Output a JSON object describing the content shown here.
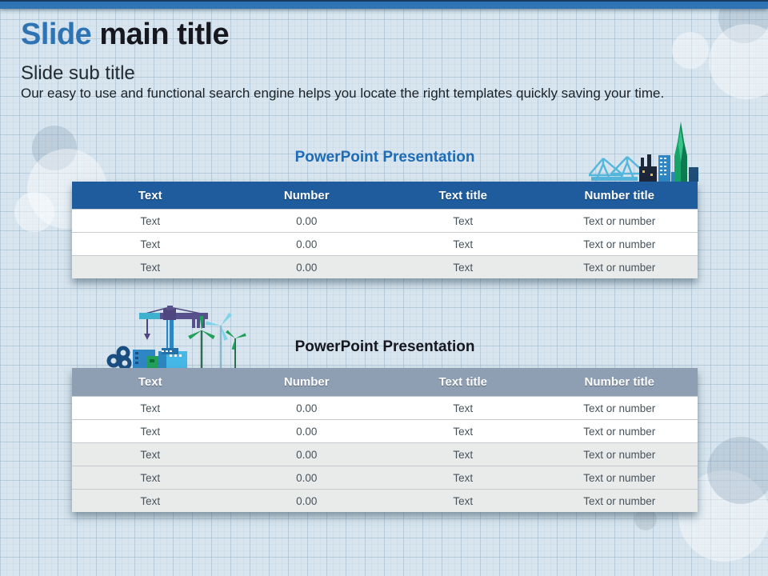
{
  "slide": {
    "title_highlight": "Slide",
    "title_rest": " main title",
    "subtitle": "Slide sub title",
    "body": "Our easy to use and functional search engine helps you locate the right templates quickly saving your time."
  },
  "colors": {
    "accent_blue": "#2E74B5",
    "table1_header_bg": "#1E5C9E",
    "table2_header_bg": "#8E9EB3",
    "title_dark": "#17171F",
    "section_title_blue": "#1E6CB5"
  },
  "illustrations": {
    "first": "city-port-skyline",
    "second": "tower-crane-and-wind-turbines"
  },
  "tables": [
    {
      "title": "PowerPoint Presentation",
      "title_color": "#1E6CB5",
      "header_bg": "#1E5C9E",
      "columns": [
        "Text",
        "Number",
        "Text title",
        "Number title"
      ],
      "rows": [
        [
          "Text",
          "0.00",
          "Text",
          "Text or number"
        ],
        [
          "Text",
          "0.00",
          "Text",
          "Text or number"
        ],
        [
          "Text",
          "0.00",
          "Text",
          "Text or number"
        ]
      ],
      "row_bgs": [
        "#FFFFFF",
        "#FFFFFF",
        "#E9EBEB"
      ]
    },
    {
      "title": "PowerPoint Presentation",
      "title_color": "#17171F",
      "header_bg": "#8E9EB3",
      "columns": [
        "Text",
        "Number",
        "Text title",
        "Number title"
      ],
      "rows": [
        [
          "Text",
          "0.00",
          "Text",
          "Text or number"
        ],
        [
          "Text",
          "0.00",
          "Text",
          "Text or number"
        ],
        [
          "Text",
          "0.00",
          "Text",
          "Text or number"
        ],
        [
          "Text",
          "0.00",
          "Text",
          "Text or number"
        ],
        [
          "Text",
          "0.00",
          "Text",
          "Text or number"
        ]
      ],
      "row_bgs": [
        "#FFFFFF",
        "#FFFFFF",
        "#E9EBEB",
        "#E9EBEB",
        "#E9EBEB"
      ]
    }
  ]
}
